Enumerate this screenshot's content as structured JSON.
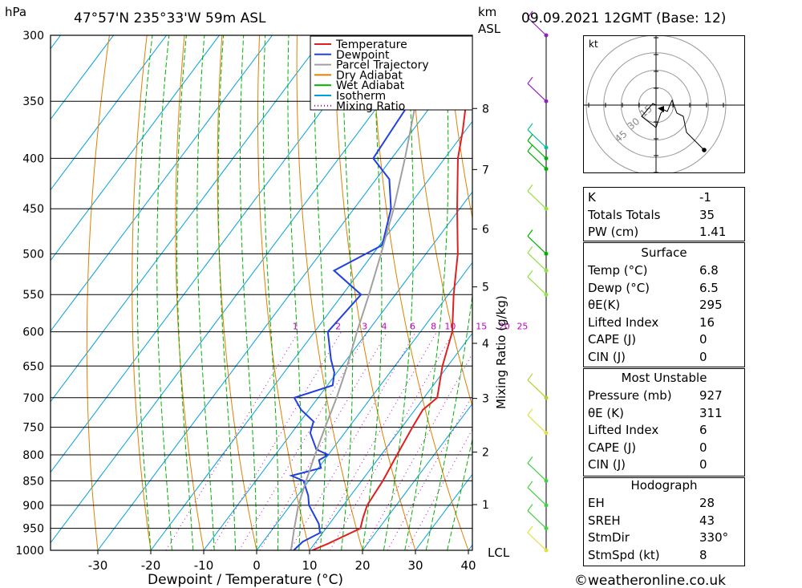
{
  "header": {
    "hpa_unit": "hPa",
    "location": "47°57'N  235°33'W  59m  ASL",
    "km_unit": "km",
    "asl_unit": "ASL",
    "datetime": "09.09.2021  12GMT  (Base: 12)"
  },
  "footer": {
    "credit": "©weatheronline.co.uk",
    "lcl": "LCL"
  },
  "legend": [
    {
      "label": "Temperature",
      "color": "#e02020"
    },
    {
      "label": "Dewpoint",
      "color": "#2040e0"
    },
    {
      "label": "Parcel Trajectory",
      "color": "#a0a0a0"
    },
    {
      "label": "Dry Adiabat",
      "color": "#e08000"
    },
    {
      "label": "Wet Adiabat",
      "color": "#00b000"
    },
    {
      "label": "Isotherm",
      "color": "#00a0e0"
    },
    {
      "label": "Mixing Ratio",
      "color": "#c000c0"
    }
  ],
  "chart_data": {
    "type": "line",
    "xlabel": "Dewpoint / Temperature (°C)",
    "ylabel_right": "Mixing Ratio (g/kg)",
    "x_ticks": [
      -30,
      -20,
      -10,
      0,
      10,
      20,
      30,
      40
    ],
    "pressure_ticks": [
      300,
      350,
      400,
      450,
      500,
      550,
      600,
      650,
      700,
      750,
      800,
      850,
      900,
      950,
      1000
    ],
    "km_ticks": [
      1,
      2,
      3,
      4,
      5,
      6,
      7,
      8
    ],
    "mixing_ratio_labels": [
      "1",
      "2",
      "3",
      "4",
      "6",
      "8",
      "10",
      "15",
      "20",
      "25"
    ],
    "series": [
      {
        "name": "Temperature",
        "color": "#e02020",
        "points": [
          [
            1000,
            10.5
          ],
          [
            985,
            12.5
          ],
          [
            950,
            16.5
          ],
          [
            927,
            15.5
          ],
          [
            900,
            14.5
          ],
          [
            850,
            14.0
          ],
          [
            800,
            13.0
          ],
          [
            750,
            12.0
          ],
          [
            720,
            11.5
          ],
          [
            700,
            12.5
          ],
          [
            650,
            9.0
          ],
          [
            600,
            6.0
          ],
          [
            550,
            1.0
          ],
          [
            500,
            -4.0
          ],
          [
            450,
            -10.5
          ],
          [
            400,
            -17.5
          ],
          [
            375,
            -20.5
          ],
          [
            350,
            -24.0
          ],
          [
            325,
            -30.0
          ],
          [
            300,
            -36.5
          ]
        ]
      },
      {
        "name": "Dewpoint",
        "color": "#2040e0",
        "points": [
          [
            1000,
            7.0
          ],
          [
            980,
            7.5
          ],
          [
            960,
            9.5
          ],
          [
            940,
            8.0
          ],
          [
            900,
            3.5
          ],
          [
            880,
            2.0
          ],
          [
            850,
            -1.0
          ],
          [
            840,
            -4.0
          ],
          [
            825,
            0.5
          ],
          [
            810,
            -1.0
          ],
          [
            800,
            0.0
          ],
          [
            790,
            -3.0
          ],
          [
            760,
            -6.5
          ],
          [
            740,
            -7.5
          ],
          [
            720,
            -11.5
          ],
          [
            700,
            -14.5
          ],
          [
            680,
            -9.0
          ],
          [
            660,
            -10.5
          ],
          [
            640,
            -13.0
          ],
          [
            600,
            -17.5
          ],
          [
            550,
            -16.5
          ],
          [
            520,
            -25.0
          ],
          [
            490,
            -19.5
          ],
          [
            450,
            -23.0
          ],
          [
            420,
            -27.5
          ],
          [
            400,
            -33.5
          ],
          [
            375,
            -34.0
          ],
          [
            350,
            -34.5
          ],
          [
            300,
            -36.0
          ]
        ]
      },
      {
        "name": "Parcel Trajectory",
        "color": "#a0a0a0",
        "points": [
          [
            1000,
            6.5
          ],
          [
            950,
            4.0
          ],
          [
            900,
            1.5
          ],
          [
            850,
            -0.5
          ],
          [
            800,
            -2.5
          ],
          [
            750,
            -4.5
          ],
          [
            700,
            -6.5
          ],
          [
            650,
            -9.0
          ],
          [
            600,
            -12.0
          ],
          [
            550,
            -15.0
          ],
          [
            500,
            -18.5
          ],
          [
            450,
            -22.5
          ],
          [
            400,
            -27.5
          ],
          [
            350,
            -33.5
          ],
          [
            300,
            -40.0
          ]
        ]
      }
    ]
  },
  "hodograph": {
    "unit": "kt",
    "ring_labels": [
      "15",
      "30",
      "45"
    ]
  },
  "indices": {
    "rows": [
      {
        "label": "K",
        "value": "-1"
      },
      {
        "label": "Totals Totals",
        "value": "35"
      },
      {
        "label": "PW (cm)",
        "value": "1.41"
      }
    ]
  },
  "surface": {
    "title": "Surface",
    "rows": [
      {
        "label": "Temp (°C)",
        "value": "6.8"
      },
      {
        "label": "Dewp (°C)",
        "value": "6.5"
      },
      {
        "label": "θE(K)",
        "value": "295"
      },
      {
        "label": "Lifted Index",
        "value": "16"
      },
      {
        "label": "CAPE (J)",
        "value": "0"
      },
      {
        "label": "CIN (J)",
        "value": "0"
      }
    ]
  },
  "most_unstable": {
    "title": "Most Unstable",
    "rows": [
      {
        "label": "Pressure (mb)",
        "value": "927"
      },
      {
        "label": "θE (K)",
        "value": "311"
      },
      {
        "label": "Lifted Index",
        "value": "6"
      },
      {
        "label": "CAPE (J)",
        "value": "0"
      },
      {
        "label": "CIN (J)",
        "value": "0"
      }
    ]
  },
  "hodograph_stats": {
    "title": "Hodograph",
    "rows": [
      {
        "label": "EH",
        "value": "28"
      },
      {
        "label": "SREH",
        "value": "43"
      },
      {
        "label": "StmDir",
        "value": "330°"
      },
      {
        "label": "StmSpd (kt)",
        "value": "8"
      }
    ]
  }
}
